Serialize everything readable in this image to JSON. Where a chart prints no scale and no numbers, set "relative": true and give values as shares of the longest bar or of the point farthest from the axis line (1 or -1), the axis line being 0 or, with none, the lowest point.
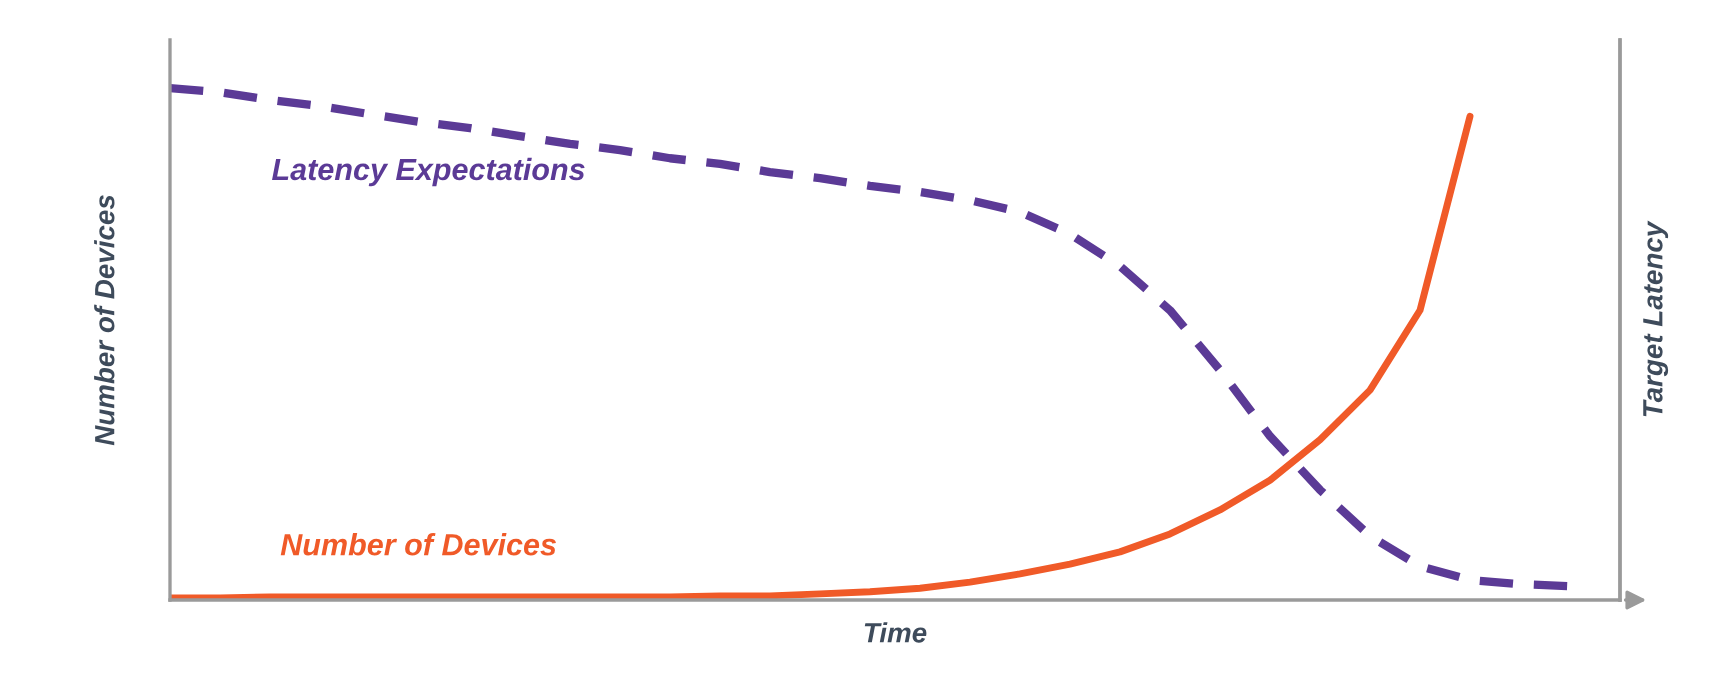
{
  "chart_data": {
    "type": "line",
    "relative": true,
    "xlabel": "Time",
    "ylabel": "Number of Devices",
    "y2label": "Target Latency",
    "categories": [
      null,
      null,
      null,
      null,
      null,
      null,
      null,
      null,
      null,
      null,
      null,
      null,
      null,
      null,
      null,
      null,
      null,
      null,
      null,
      null,
      null,
      null,
      null,
      null,
      null,
      null,
      null,
      null,
      null,
      null
    ],
    "series": [
      {
        "name": "Latency Expectations",
        "color": "#5b3a96",
        "line_style": "dashed",
        "values": [
          1.0,
          0.992,
          0.977,
          0.965,
          0.949,
          0.934,
          0.922,
          0.906,
          0.891,
          0.879,
          0.863,
          0.852,
          0.836,
          0.824,
          0.809,
          0.797,
          0.781,
          0.758,
          0.715,
          0.652,
          0.566,
          0.449,
          0.32,
          0.215,
          0.125,
          0.066,
          0.039,
          0.031,
          0.027,
          null
        ]
      },
      {
        "name": "Number of Devices",
        "color": "#f05a28",
        "line_style": "solid",
        "values": [
          0.004,
          0.004,
          0.006,
          0.006,
          0.006,
          0.006,
          0.006,
          0.006,
          0.006,
          0.006,
          0.006,
          0.008,
          0.008,
          0.012,
          0.016,
          0.023,
          0.035,
          0.051,
          0.07,
          0.094,
          0.129,
          0.176,
          0.234,
          0.313,
          0.41,
          0.566,
          0.945,
          null,
          null,
          null
        ]
      }
    ],
    "legend": false
  }
}
